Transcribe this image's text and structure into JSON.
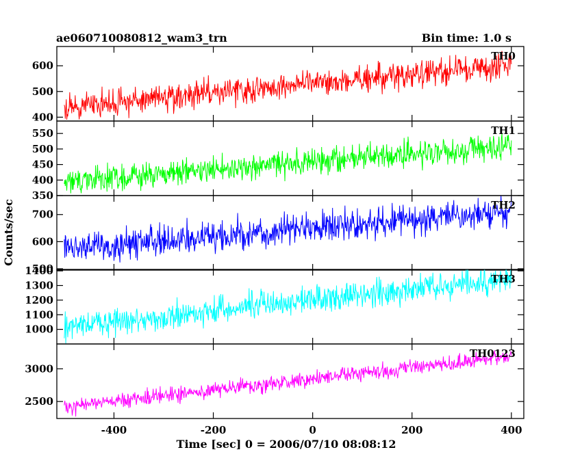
{
  "header": {
    "title": "ae060710080812_wam3_trn",
    "bin_time": "Bin time: 1.0 s"
  },
  "chart_data": {
    "type": "line",
    "title": "ae060710080812_wam3_trn",
    "xlabel": "Time [sec] 0 = 2006/07/10 08:08:12",
    "ylabel": "Counts/sec",
    "xlim": [
      -515,
      425
    ],
    "xticks": [
      -400,
      -200,
      0,
      200,
      400
    ],
    "x_start": -500,
    "x_end": 400,
    "bin_time": 1.0,
    "grid": false,
    "series": [
      {
        "name": "TH0",
        "color": "#ff0000",
        "ylim": [
          385,
          675
        ],
        "yticks": [
          400,
          500,
          600
        ],
        "trend_start": 440,
        "trend_end": 605,
        "noise": 26
      },
      {
        "name": "TH1",
        "color": "#00ff00",
        "ylim": [
          350,
          590
        ],
        "yticks": [
          350,
          400,
          450,
          500,
          550
        ],
        "trend_start": 395,
        "trend_end": 510,
        "noise": 22
      },
      {
        "name": "TH2",
        "color": "#0000ff",
        "ylim": [
          495,
          770
        ],
        "yticks": [
          500,
          600,
          700
        ],
        "trend_start": 570,
        "trend_end": 715,
        "noise": 28
      },
      {
        "name": "TH3",
        "color": "#00ffff",
        "ylim": [
          900,
          1410
        ],
        "yticks": [
          1000,
          1100,
          1200,
          1300,
          1400
        ],
        "trend_start": 1015,
        "trend_end": 1350,
        "noise": 45
      },
      {
        "name": "TH0123",
        "color": "#ff00ff",
        "ylim": [
          2240,
          3380
        ],
        "yticks": [
          2500,
          3000
        ],
        "trend_start": 2420,
        "trend_end": 3190,
        "noise": 55
      }
    ]
  }
}
